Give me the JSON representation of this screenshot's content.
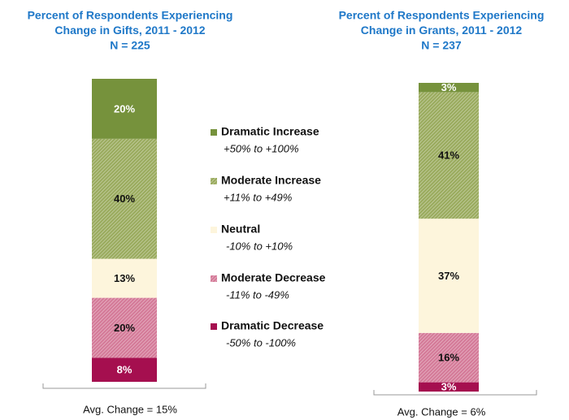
{
  "chart_data": [
    {
      "type": "stacked-bar",
      "title": [
        "Percent of Respondents Experiencing",
        "Change in Gifts, 2011 - 2012"
      ],
      "subtitle": "N = 225",
      "note": "Avg. Change = 15%",
      "series": [
        {
          "name": "Dramatic Increase",
          "range": "+50% to +100%",
          "color": "#76923c",
          "hatch": false,
          "values": [
            20
          ],
          "value_labels": [
            "20%"
          ]
        },
        {
          "name": "Moderate Increase",
          "range": "+11% to +49%",
          "color": "#9aab5e",
          "hatch": true,
          "values": [
            40
          ],
          "value_labels": [
            "40%"
          ]
        },
        {
          "name": "Neutral",
          "range": "-10% to +10%",
          "color": "#fdf5dc",
          "hatch": false,
          "values": [
            13
          ],
          "value_labels": [
            "13%"
          ]
        },
        {
          "name": "Moderate Decrease",
          "range": "-11% to -49%",
          "color": "#d47a98",
          "hatch": true,
          "values": [
            20
          ],
          "value_labels": [
            "20%"
          ]
        },
        {
          "name": "Dramatic Decrease",
          "range": "-50% to -100%",
          "color": "#a50f4f",
          "hatch": false,
          "values": [
            8
          ],
          "value_labels": [
            "8%"
          ]
        }
      ]
    },
    {
      "type": "stacked-bar",
      "title": [
        "Percent of Respondents Experiencing",
        "Change in Grants, 2011 - 2012"
      ],
      "subtitle": "N = 237",
      "note": "Avg. Change = 6%",
      "series": [
        {
          "values": [
            3
          ],
          "value_labels": [
            "3%"
          ]
        },
        {
          "values": [
            41
          ],
          "value_labels": [
            "41%"
          ]
        },
        {
          "values": [
            37
          ],
          "value_labels": [
            "37%"
          ]
        },
        {
          "values": [
            16
          ],
          "value_labels": [
            "16%"
          ]
        },
        {
          "values": [
            3
          ],
          "value_labels": [
            "3%"
          ]
        }
      ]
    }
  ]
}
